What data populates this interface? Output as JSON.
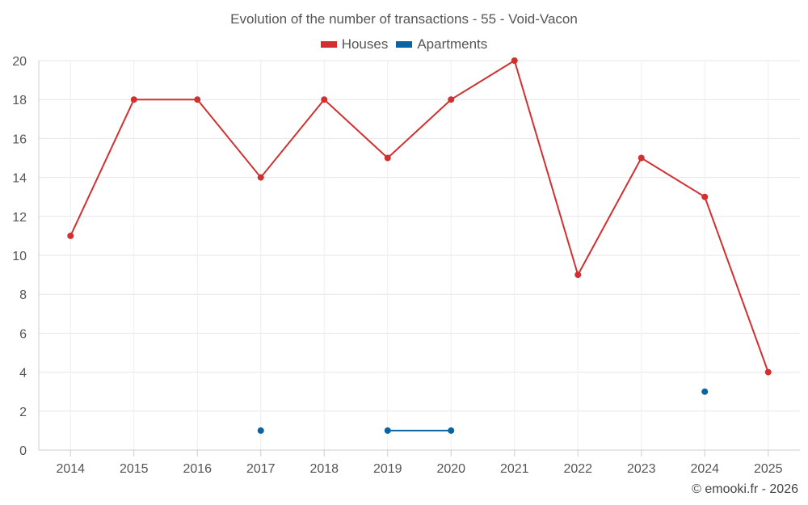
{
  "chart_data": {
    "type": "line",
    "title": "Evolution of the number of transactions - 55 - Void-Vacon",
    "categories": [
      "2014",
      "2015",
      "2016",
      "2017",
      "2018",
      "2019",
      "2020",
      "2021",
      "2022",
      "2023",
      "2024",
      "2025"
    ],
    "series": [
      {
        "name": "Houses",
        "color": "#d32f2f",
        "values": [
          11,
          18,
          18,
          14,
          18,
          15,
          18,
          20,
          9,
          15,
          13,
          4
        ]
      },
      {
        "name": "Apartments",
        "color": "#0a64a4",
        "values": [
          null,
          null,
          null,
          1,
          null,
          1,
          1,
          null,
          null,
          null,
          3,
          null
        ]
      }
    ],
    "ylim": [
      0,
      20
    ],
    "yticks": [
      0,
      2,
      4,
      6,
      8,
      10,
      12,
      14,
      16,
      18,
      20
    ],
    "grid": true,
    "legend_position": "top-center",
    "xlabel": "",
    "ylabel": ""
  },
  "credit": "© emooki.fr - 2026"
}
